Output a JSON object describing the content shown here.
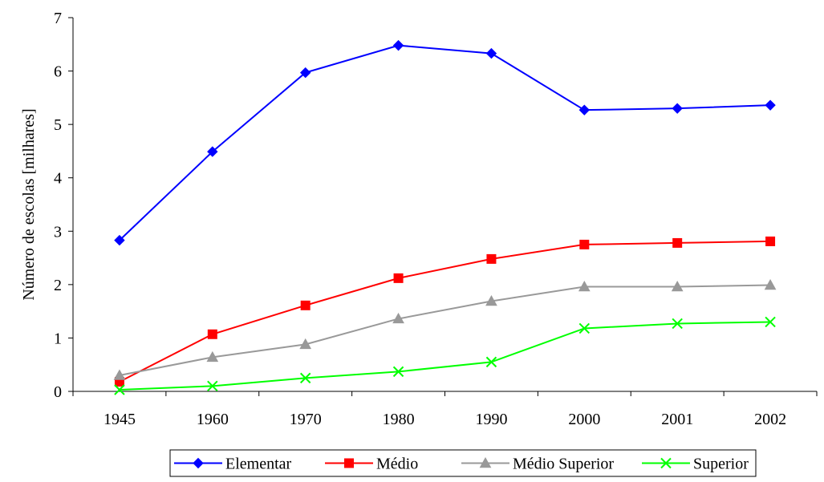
{
  "chart_data": {
    "type": "line",
    "title": "",
    "xlabel": "",
    "ylabel": "Número de escolas [milhares]",
    "categories": [
      "1945",
      "1960",
      "1970",
      "1980",
      "1990",
      "2000",
      "2001",
      "2002"
    ],
    "ylim": [
      0,
      7
    ],
    "yticks": [
      "0",
      "1",
      "2",
      "3",
      "4",
      "5",
      "6",
      "7"
    ],
    "grid": false,
    "legend_position": "bottom",
    "series": [
      {
        "name": "Elementar",
        "color": "#0000ff",
        "marker": "diamond",
        "values": [
          2.83,
          4.49,
          5.97,
          6.48,
          6.33,
          5.27,
          5.3,
          5.36
        ]
      },
      {
        "name": "Médio",
        "color": "#ff0000",
        "marker": "square",
        "values": [
          0.18,
          1.07,
          1.61,
          2.12,
          2.48,
          2.75,
          2.78,
          2.81
        ]
      },
      {
        "name": "Médio Superior",
        "color": "#999999",
        "marker": "triangle",
        "values": [
          0.3,
          0.64,
          0.88,
          1.36,
          1.69,
          1.96,
          1.96,
          1.99
        ]
      },
      {
        "name": "Superior",
        "color": "#00ff00",
        "marker": "x",
        "values": [
          0.03,
          0.1,
          0.25,
          0.37,
          0.55,
          1.18,
          1.27,
          1.3
        ]
      }
    ]
  }
}
